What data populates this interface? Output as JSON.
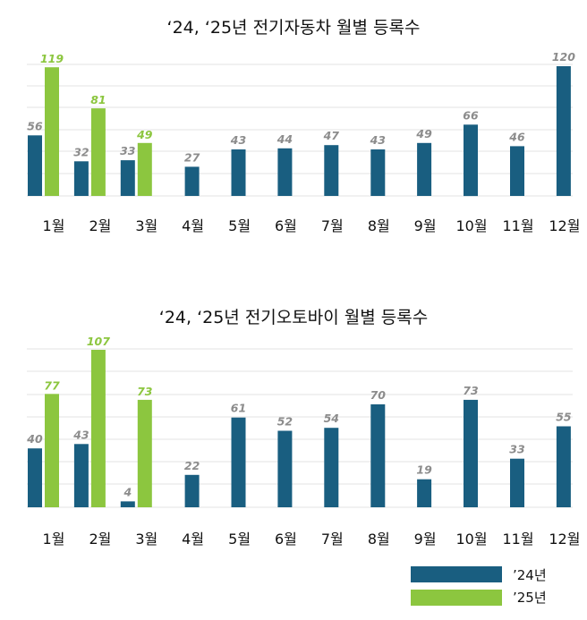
{
  "colors": {
    "y24": "#195e80",
    "y25": "#8cc63f",
    "label24": "#8c8c8c",
    "label25": "#8cc63f",
    "grid": "#e3e3e3"
  },
  "legend": {
    "items": [
      {
        "label": "’24년",
        "color": "#195e80"
      },
      {
        "label": "’25년",
        "color": "#8cc63f"
      }
    ],
    "position": "bottom-right"
  },
  "chart_data": [
    {
      "type": "bar",
      "title": "‘24, ‘25년 전기자동차 월별 등록수",
      "categories": [
        "1월",
        "2월",
        "3월",
        "4월",
        "5월",
        "6월",
        "7월",
        "8월",
        "9월",
        "10월",
        "11월",
        "12월"
      ],
      "series": [
        {
          "name": "’24년",
          "values": [
            56,
            32,
            33,
            27,
            43,
            44,
            47,
            43,
            49,
            66,
            46,
            120
          ]
        },
        {
          "name": "’25년",
          "values": [
            119,
            81,
            49,
            null,
            null,
            null,
            null,
            null,
            null,
            null,
            null,
            null
          ]
        }
      ],
      "ylim": [
        0,
        120
      ],
      "grid": true
    },
    {
      "type": "bar",
      "title": "‘24, ‘25년 전기오토바이 월별 등록수",
      "categories": [
        "1월",
        "2월",
        "3월",
        "4월",
        "5월",
        "6월",
        "7월",
        "8월",
        "9월",
        "10월",
        "11월",
        "12월"
      ],
      "series": [
        {
          "name": "’24년",
          "values": [
            40,
            43,
            4,
            22,
            61,
            52,
            54,
            70,
            19,
            73,
            33,
            55
          ]
        },
        {
          "name": "’25년",
          "values": [
            77,
            107,
            73,
            null,
            null,
            null,
            null,
            null,
            null,
            null,
            null,
            null
          ]
        }
      ],
      "ylim": [
        0,
        107
      ],
      "grid": true
    }
  ]
}
